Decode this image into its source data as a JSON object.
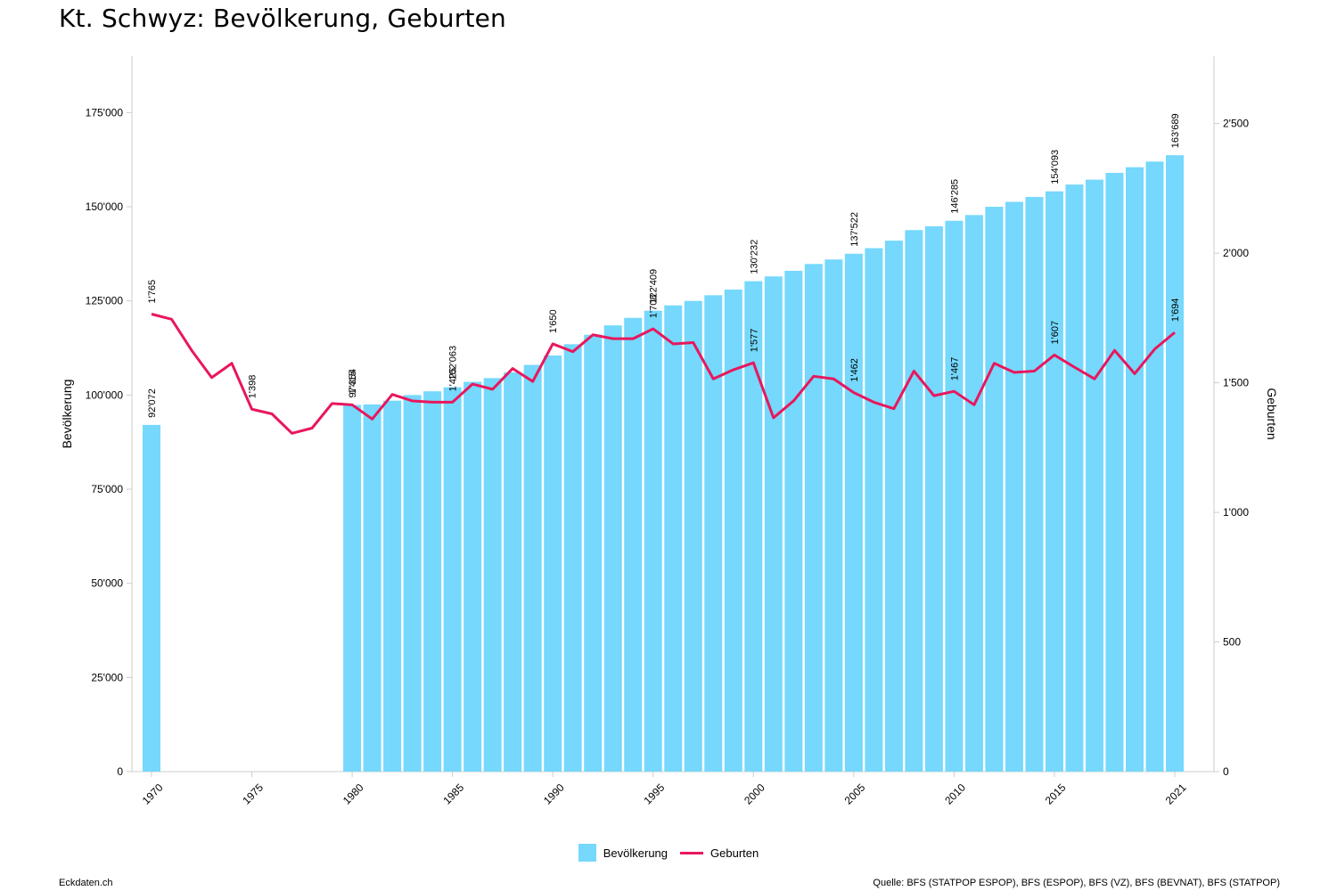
{
  "title": "Kt. Schwyz: Bevölkerung, Geburten",
  "footer": {
    "left": "Eckdaten.ch",
    "right": "Quelle: BFS (STATPOP ESPOP), BFS (ESPOP), BFS (VZ), BFS (BEVNAT), BFS (STATPOP)"
  },
  "legend": {
    "bar_label": "Bevölkerung",
    "line_label": "Geburten"
  },
  "colors": {
    "bar": "#75d8fc",
    "line": "#e8175d",
    "axis": "#cccccc"
  },
  "chart_data": {
    "type": "bar+line",
    "title": "Kt. Schwyz: Bevölkerung, Geburten",
    "xlabel": "",
    "ylabel_left": "Bevölkerung",
    "ylabel_right": "Geburten",
    "ylim_left": [
      0,
      190000
    ],
    "ylim_right": [
      0,
      2760
    ],
    "yticks_left": [
      "0",
      "25'000",
      "50'000",
      "75'000",
      "100'000",
      "125'000",
      "150'000",
      "175'000"
    ],
    "yticks_left_values": [
      0,
      25000,
      50000,
      75000,
      100000,
      125000,
      150000,
      175000
    ],
    "yticks_right": [
      "0",
      "500",
      "1'000",
      "1'500",
      "2'000",
      "2'500"
    ],
    "yticks_right_values": [
      0,
      500,
      1000,
      1500,
      2000,
      2500
    ],
    "xticks": [
      "1970",
      "1975",
      "1980",
      "1985",
      "1990",
      "1995",
      "2000",
      "2005",
      "2010",
      "2015",
      "2021"
    ],
    "xticks_values": [
      1970,
      1975,
      1980,
      1985,
      1990,
      1995,
      2000,
      2005,
      2010,
      2015,
      2021
    ],
    "grid": false,
    "legend_position": "bottom-center",
    "series": [
      {
        "name": "Bevölkerung",
        "type": "bar",
        "axis": "left",
        "x": [
          1970,
          1980,
          1981,
          1982,
          1983,
          1984,
          1985,
          1986,
          1987,
          1988,
          1989,
          1990,
          1991,
          1992,
          1993,
          1994,
          1995,
          1996,
          1997,
          1998,
          1999,
          2000,
          2001,
          2002,
          2003,
          2004,
          2005,
          2006,
          2007,
          2008,
          2009,
          2010,
          2011,
          2012,
          2013,
          2014,
          2015,
          2016,
          2017,
          2018,
          2019,
          2020,
          2021
        ],
        "values": [
          92072,
          97354,
          97500,
          98500,
          100000,
          101000,
          102063,
          103500,
          104500,
          106000,
          108000,
          110500,
          113500,
          116000,
          118500,
          120500,
          122409,
          123800,
          125000,
          126500,
          128000,
          130232,
          131500,
          133000,
          134800,
          136000,
          137522,
          139000,
          141000,
          143800,
          144800,
          146285,
          147800,
          150000,
          151300,
          152600,
          154093,
          155900,
          157200,
          159000,
          160500,
          162000,
          163689
        ]
      },
      {
        "name": "Geburten",
        "type": "line",
        "axis": "right",
        "x": [
          1970,
          1971,
          1972,
          1973,
          1974,
          1975,
          1976,
          1977,
          1978,
          1979,
          1980,
          1981,
          1982,
          1983,
          1984,
          1985,
          1986,
          1987,
          1988,
          1989,
          1990,
          1991,
          1992,
          1993,
          1994,
          1995,
          1996,
          1997,
          1998,
          1999,
          2000,
          2001,
          2002,
          2003,
          2004,
          2005,
          2006,
          2007,
          2008,
          2009,
          2010,
          2011,
          2012,
          2013,
          2014,
          2015,
          2016,
          2017,
          2018,
          2019,
          2020,
          2021
        ],
        "values": [
          1765,
          1745,
          1625,
          1520,
          1575,
          1398,
          1380,
          1305,
          1325,
          1420,
          1415,
          1360,
          1455,
          1430,
          1425,
          1425,
          1495,
          1475,
          1555,
          1505,
          1650,
          1620,
          1685,
          1670,
          1670,
          1708,
          1650,
          1655,
          1515,
          1550,
          1577,
          1365,
          1430,
          1525,
          1515,
          1462,
          1425,
          1400,
          1545,
          1450,
          1467,
          1415,
          1575,
          1540,
          1545,
          1607,
          1560,
          1515,
          1625,
          1535,
          1630,
          1694
        ]
      }
    ],
    "data_labels": [
      {
        "series": "Bevölkerung",
        "x": 1970,
        "text": "92'072"
      },
      {
        "series": "Bevölkerung",
        "x": 1980,
        "text": "97'354"
      },
      {
        "series": "Bevölkerung",
        "x": 1985,
        "text": "102'063"
      },
      {
        "series": "Bevölkerung",
        "x": 1995,
        "text": "122'409"
      },
      {
        "series": "Bevölkerung",
        "x": 2000,
        "text": "130'232"
      },
      {
        "series": "Bevölkerung",
        "x": 2005,
        "text": "137'522"
      },
      {
        "series": "Bevölkerung",
        "x": 2010,
        "text": "146'285"
      },
      {
        "series": "Bevölkerung",
        "x": 2015,
        "text": "154'093"
      },
      {
        "series": "Bevölkerung",
        "x": 2021,
        "text": "163'689"
      },
      {
        "series": "Geburten",
        "x": 1970,
        "text": "1'765"
      },
      {
        "series": "Geburten",
        "x": 1975,
        "text": "1'398"
      },
      {
        "series": "Geburten",
        "x": 1980,
        "text": "1'415"
      },
      {
        "series": "Geburten",
        "x": 1985,
        "text": "1'425"
      },
      {
        "series": "Geburten",
        "x": 1990,
        "text": "1'650"
      },
      {
        "series": "Geburten",
        "x": 1995,
        "text": "1'708"
      },
      {
        "series": "Geburten",
        "x": 2000,
        "text": "1'577"
      },
      {
        "series": "Geburten",
        "x": 2005,
        "text": "1'462"
      },
      {
        "series": "Geburten",
        "x": 2010,
        "text": "1'467"
      },
      {
        "series": "Geburten",
        "x": 2015,
        "text": "1'607"
      },
      {
        "series": "Geburten",
        "x": 2021,
        "text": "1'694"
      }
    ]
  }
}
